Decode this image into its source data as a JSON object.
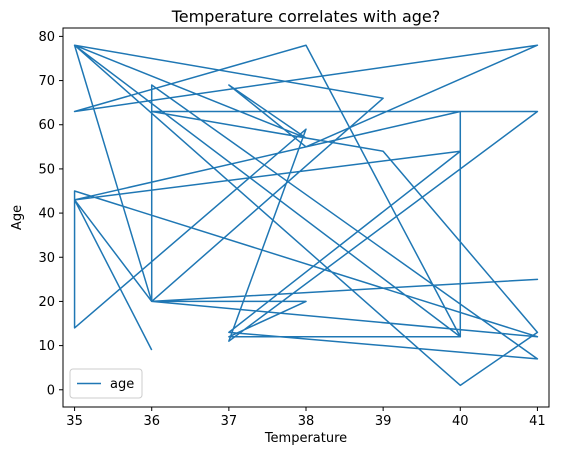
{
  "chart_data": {
    "type": "line",
    "title": "Temperature correlates with age?",
    "xlabel": "Temperature",
    "ylabel": "Age",
    "xlim": [
      34.85,
      41.15
    ],
    "ylim": [
      -3.9,
      81.9
    ],
    "xticks": [
      35,
      36,
      37,
      38,
      39,
      40,
      41
    ],
    "yticks": [
      0,
      10,
      20,
      30,
      40,
      50,
      60,
      70,
      80
    ],
    "grid": false,
    "legend_position": "lower-left",
    "series": [
      {
        "name": "age",
        "color": "#1f77b4",
        "x": [
          35,
          36,
          41,
          36,
          36,
          41,
          37,
          40,
          35,
          40,
          40,
          38,
          35,
          41,
          38,
          37,
          38,
          35,
          39,
          36,
          41,
          35,
          35,
          38,
          37,
          41,
          36,
          39,
          41,
          40,
          35,
          40,
          39,
          37,
          38,
          36,
          35,
          36
        ],
        "y": [
          78,
          20,
          25,
          20,
          69,
          7,
          13,
          54,
          43,
          63,
          12,
          78,
          63,
          78,
          55,
          69,
          57,
          78,
          66,
          20,
          12,
          45,
          14,
          59,
          11,
          63,
          63,
          54,
          13,
          1,
          78,
          12,
          12,
          12,
          20,
          20,
          43,
          9
        ]
      }
    ]
  }
}
